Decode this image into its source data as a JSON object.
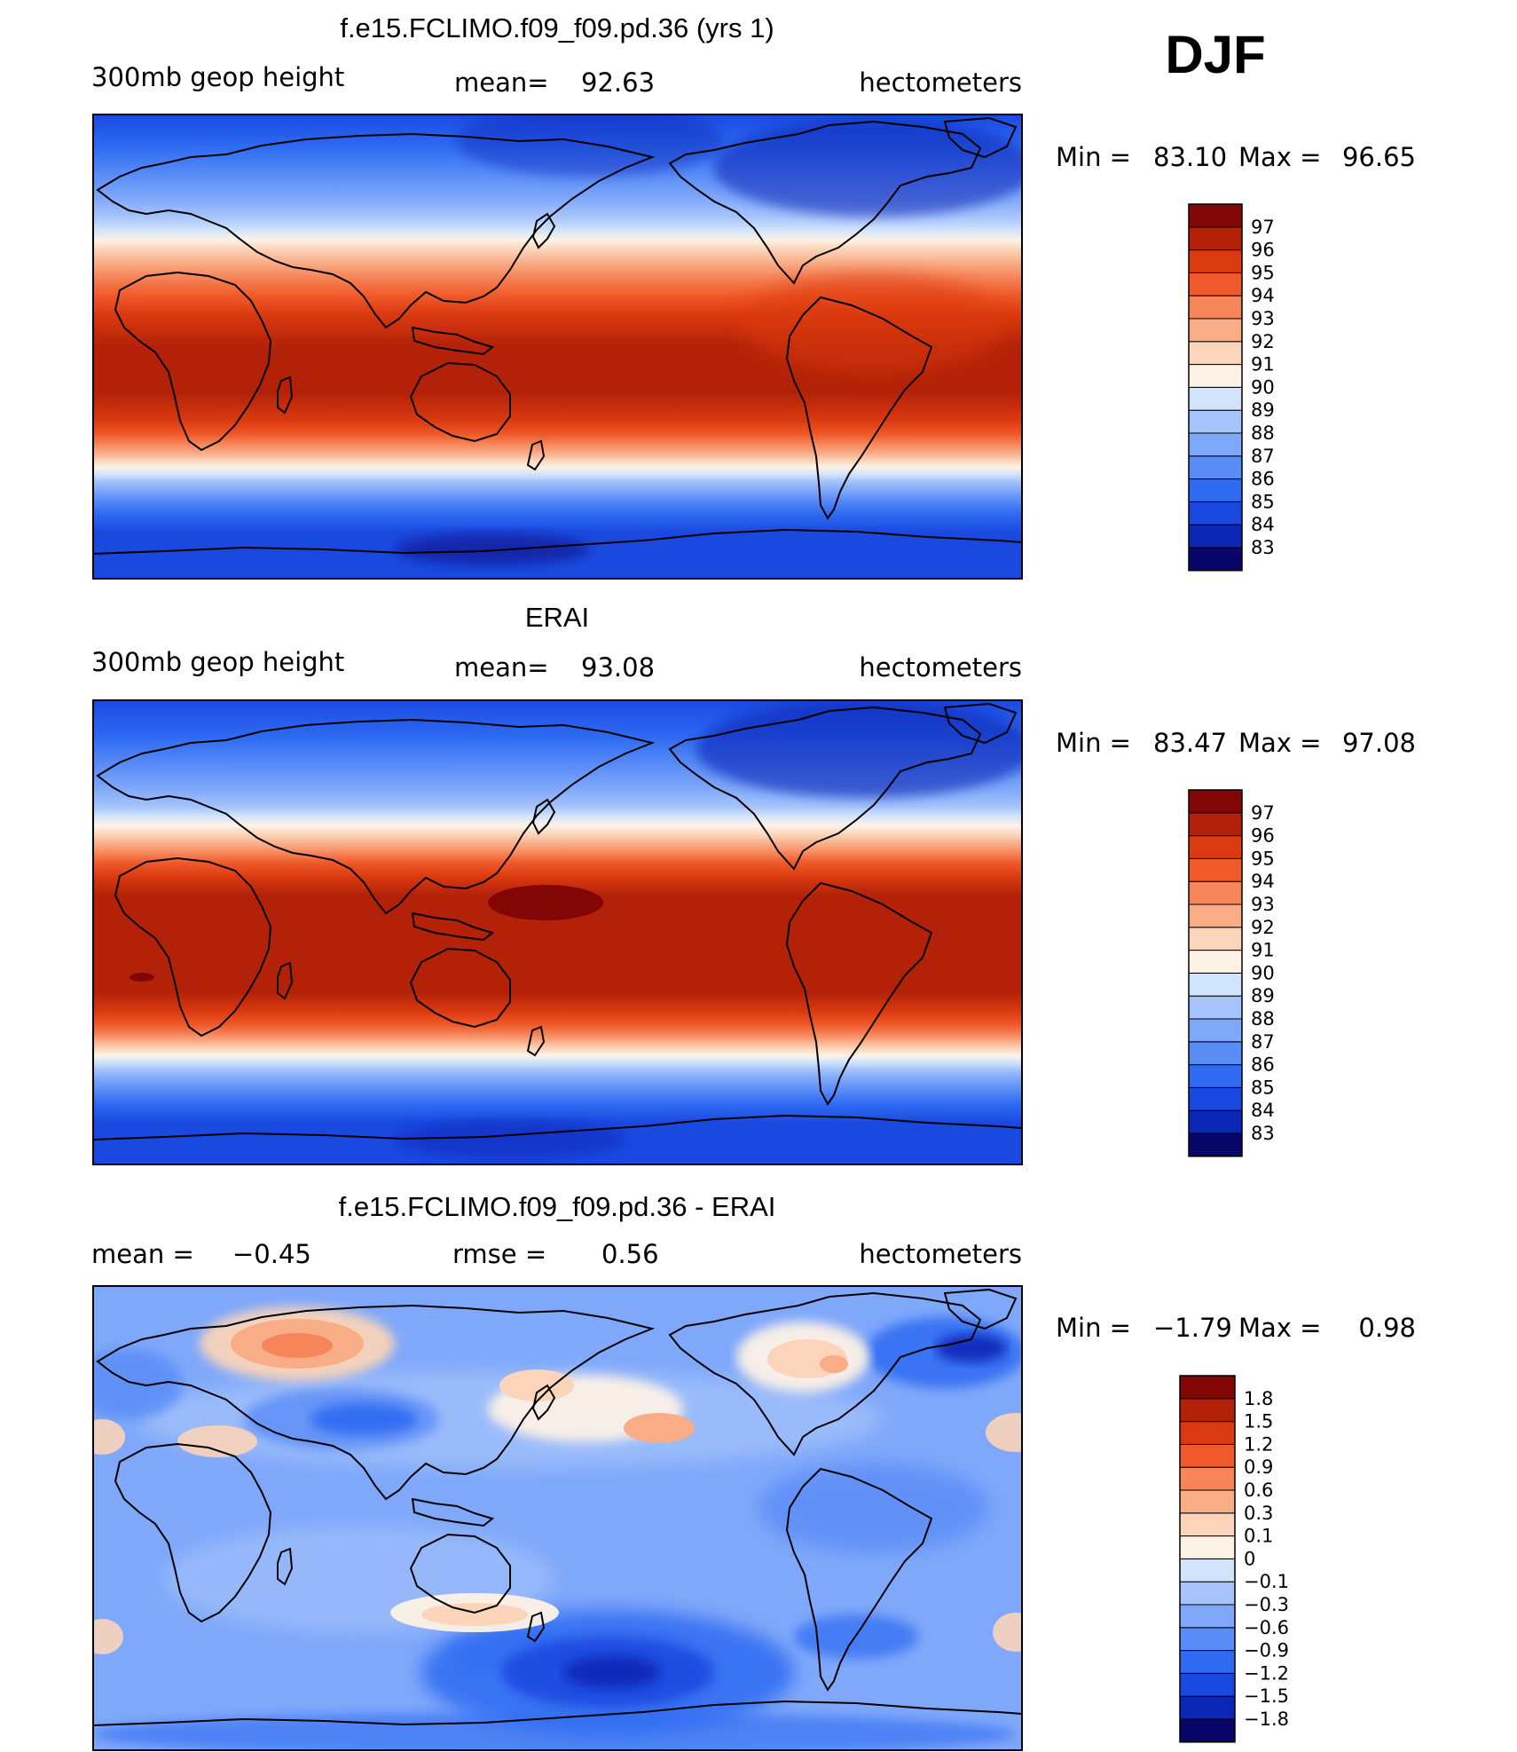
{
  "season": "DJF",
  "panels": [
    {
      "id": "model",
      "title": "f.e15.FCLIMO.f09_f09.pd.36 (yrs 1)",
      "left": "300mb geop height",
      "center_label": "mean=",
      "center_value": "92.63",
      "right_label": "",
      "right_value": "",
      "units": "hectometers",
      "min_label": "Min =",
      "min_value": "83.10",
      "max_label": "Max =",
      "max_value": "96.65",
      "colorbar": {
        "colors": [
          "#08066b",
          "#0b27b5",
          "#1a49e0",
          "#2e6bf2",
          "#5a8cf7",
          "#7fa8fa",
          "#a6c4fb",
          "#d2e4fc",
          "#fdf2e6",
          "#fbd4b9",
          "#f9ad86",
          "#f6855a",
          "#f05a2a",
          "#db3a10",
          "#b32208",
          "#830606"
        ],
        "labels": [
          "83",
          "84",
          "85",
          "86",
          "87",
          "88",
          "89",
          "90",
          "91",
          "92",
          "93",
          "94",
          "95",
          "96",
          "97"
        ]
      }
    },
    {
      "id": "obs",
      "title": "ERAI",
      "left": "300mb geop height",
      "center_label": "mean=",
      "center_value": "93.08",
      "right_label": "",
      "right_value": "",
      "units": "hectometers",
      "min_label": "Min =",
      "min_value": "83.47",
      "max_label": "Max =",
      "max_value": "97.08",
      "colorbar": {
        "colors": [
          "#08066b",
          "#0b27b5",
          "#1a49e0",
          "#2e6bf2",
          "#5a8cf7",
          "#7fa8fa",
          "#a6c4fb",
          "#d2e4fc",
          "#fdf2e6",
          "#fbd4b9",
          "#f9ad86",
          "#f6855a",
          "#f05a2a",
          "#db3a10",
          "#b32208",
          "#830606"
        ],
        "labels": [
          "83",
          "84",
          "85",
          "86",
          "87",
          "88",
          "89",
          "90",
          "91",
          "92",
          "93",
          "94",
          "95",
          "96",
          "97"
        ]
      }
    },
    {
      "id": "diff",
      "title": "f.e15.FCLIMO.f09_f09.pd.36 - ERAI",
      "left": "mean =",
      "left_value": "−0.45",
      "center_label": "rmse =",
      "center_value": "0.56",
      "units": "hectometers",
      "min_label": "Min =",
      "min_value": "−1.79",
      "max_label": "Max =",
      "max_value": "0.98",
      "colorbar": {
        "colors": [
          "#08066b",
          "#0b27b5",
          "#1a49e0",
          "#2e6bf2",
          "#5a8cf7",
          "#7fa8fa",
          "#a6c4fb",
          "#d2e4fc",
          "#fdf2e6",
          "#fbd4b9",
          "#f9ad86",
          "#f6855a",
          "#f05a2a",
          "#db3a10",
          "#b32208",
          "#830606"
        ],
        "labels": [
          "−1.8",
          "−1.5",
          "−1.2",
          "−0.9",
          "−0.6",
          "−0.3",
          "−0.1",
          "0",
          "0.1",
          "0.3",
          "0.6",
          "0.9",
          "1.2",
          "1.5",
          "1.8"
        ]
      }
    }
  ]
}
